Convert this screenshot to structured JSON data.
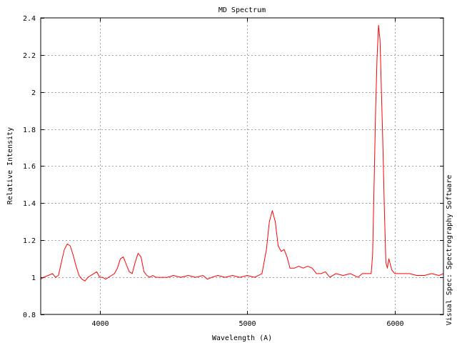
{
  "chart_data": {
    "type": "line",
    "title": "MD Spectrum",
    "xlabel": "Wavelength (A)",
    "ylabel": "Relative Intensity",
    "side_label": "Visual Spec: Spectrography Software",
    "xlim": [
      3600,
      6330
    ],
    "ylim": [
      0.8,
      2.4
    ],
    "x_ticks": [
      4000,
      5000,
      6000
    ],
    "x_tick_labels": [
      "4000",
      "5000",
      "6000"
    ],
    "y_ticks": [
      0.8,
      1,
      1.2,
      1.4,
      1.6,
      1.8,
      2,
      2.2,
      2.4
    ],
    "y_tick_labels": [
      "0.8",
      "1",
      "1.2",
      "1.4",
      "1.6",
      "1.8",
      "2",
      "2.2",
      "2.4"
    ],
    "grid": true,
    "series": [
      {
        "color": "#ff0000",
        "x": [
          3600,
          3620,
          3650,
          3680,
          3700,
          3720,
          3740,
          3760,
          3780,
          3800,
          3820,
          3840,
          3860,
          3880,
          3900,
          3920,
          3940,
          3960,
          3980,
          4000,
          4020,
          4040,
          4060,
          4080,
          4100,
          4120,
          4140,
          4160,
          4180,
          4200,
          4220,
          4240,
          4260,
          4280,
          4300,
          4320,
          4340,
          4360,
          4380,
          4400,
          4420,
          4440,
          4460,
          4500,
          4550,
          4600,
          4650,
          4700,
          4730,
          4760,
          4800,
          4850,
          4900,
          4950,
          5000,
          5050,
          5100,
          5130,
          5150,
          5170,
          5190,
          5210,
          5230,
          5250,
          5270,
          5290,
          5320,
          5350,
          5380,
          5410,
          5440,
          5470,
          5500,
          5530,
          5560,
          5600,
          5650,
          5700,
          5750,
          5780,
          5800,
          5820,
          5840,
          5850,
          5860,
          5870,
          5880,
          5890,
          5900,
          5910,
          5920,
          5930,
          5940,
          5950,
          5960,
          5970,
          5980,
          6000,
          6020,
          6050,
          6100,
          6150,
          6200,
          6250,
          6300,
          6330
        ],
        "y": [
          0.99,
          1.0,
          1.01,
          1.02,
          1.0,
          1.01,
          1.08,
          1.15,
          1.18,
          1.17,
          1.12,
          1.06,
          1.01,
          0.99,
          0.98,
          1.0,
          1.01,
          1.02,
          1.03,
          1.0,
          1.0,
          0.99,
          1.0,
          1.01,
          1.02,
          1.05,
          1.1,
          1.11,
          1.07,
          1.03,
          1.02,
          1.08,
          1.13,
          1.11,
          1.03,
          1.01,
          1.0,
          1.01,
          1.0,
          1.0,
          1.0,
          1.0,
          1.0,
          1.01,
          1.0,
          1.01,
          1.0,
          1.01,
          0.99,
          1.0,
          1.01,
          1.0,
          1.01,
          1.0,
          1.01,
          1.0,
          1.02,
          1.15,
          1.3,
          1.36,
          1.3,
          1.17,
          1.14,
          1.15,
          1.11,
          1.05,
          1.05,
          1.06,
          1.05,
          1.06,
          1.05,
          1.02,
          1.02,
          1.03,
          1.0,
          1.02,
          1.01,
          1.02,
          1.0,
          1.02,
          1.02,
          1.02,
          1.02,
          1.12,
          1.5,
          1.9,
          2.18,
          2.36,
          2.28,
          2.0,
          1.7,
          1.35,
          1.08,
          1.05,
          1.1,
          1.07,
          1.04,
          1.02,
          1.02,
          1.02,
          1.02,
          1.01,
          1.01,
          1.02,
          1.01,
          1.02
        ]
      }
    ]
  }
}
